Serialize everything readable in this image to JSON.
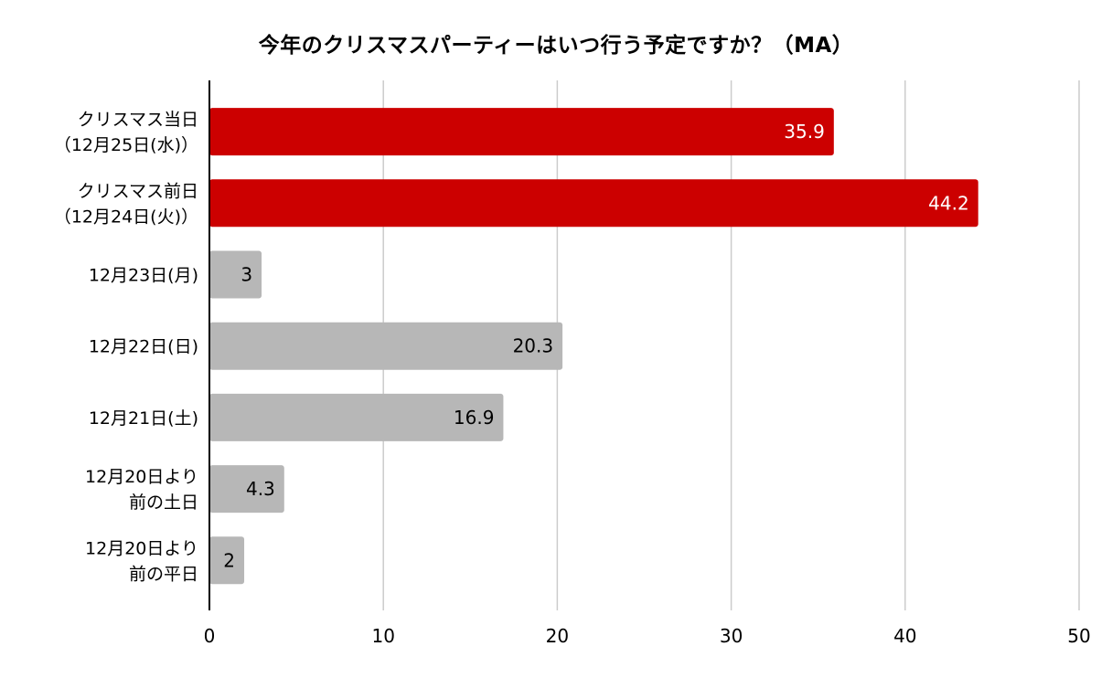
{
  "chart_data": {
    "type": "bar",
    "orientation": "horizontal",
    "title": "今年のクリスマスパーティーはいつ行う予定ですか？（MA）",
    "xlabel": "",
    "ylabel": "",
    "xlim": [
      0,
      50
    ],
    "xticks": [
      "0",
      "10",
      "20",
      "30",
      "40",
      "50"
    ],
    "grid": "vertical",
    "legend": "none",
    "categories": [
      [
        "クリスマス当日",
        "（12月25日(水)）"
      ],
      [
        "クリスマス前日",
        "（12月24日(火)）"
      ],
      [
        "12月23日(月)"
      ],
      [
        "12月22日(日)"
      ],
      [
        "12月21日(土)"
      ],
      [
        "12月20日より",
        "前の土日"
      ],
      [
        "12月20日より",
        "前の平日"
      ]
    ],
    "values": [
      35.9,
      44.2,
      3,
      20.3,
      16.9,
      4.3,
      2
    ],
    "value_labels": [
      "35.9",
      "44.2",
      "3",
      "20.3",
      "16.9",
      "4.3",
      "2"
    ],
    "bar_colors": [
      "#cc0000",
      "#cc0000",
      "#b7b7b7",
      "#b7b7b7",
      "#b7b7b7",
      "#b7b7b7",
      "#b7b7b7"
    ],
    "label_colors": [
      "#ffffff",
      "#ffffff",
      "#000000",
      "#000000",
      "#000000",
      "#000000",
      "#000000"
    ],
    "gridline_color": "#cccccc",
    "axis_color": "#000000"
  }
}
